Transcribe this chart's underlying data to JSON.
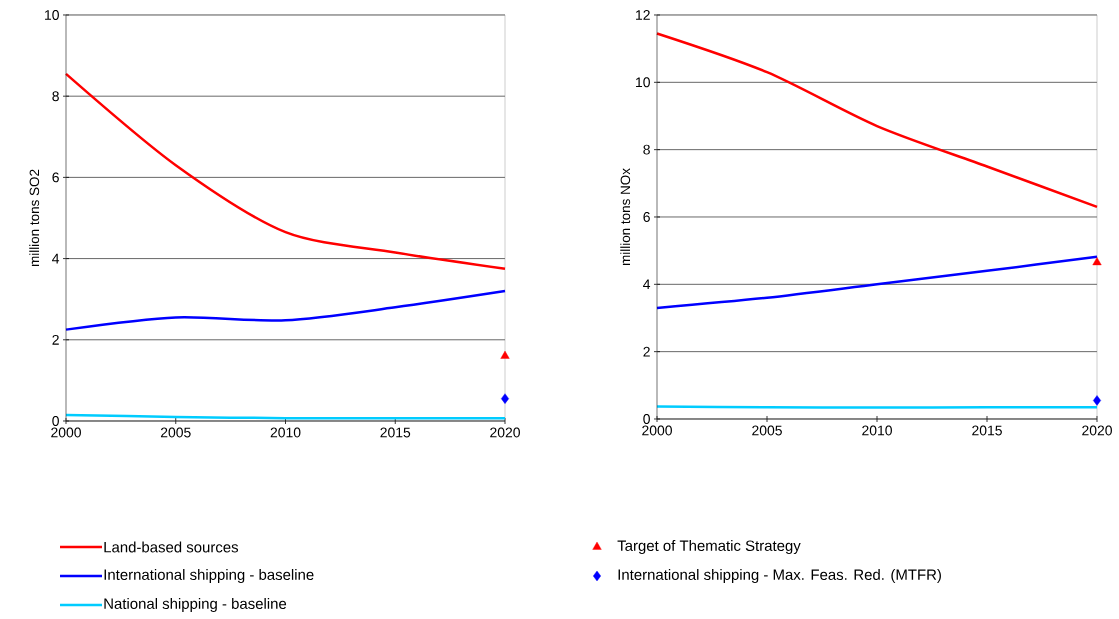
{
  "chart_data": [
    {
      "type": "line",
      "x": [
        2000,
        2005,
        2010,
        2015,
        2020
      ],
      "xlim": [
        2000,
        2020
      ],
      "xticks": [
        2000,
        2005,
        2010,
        2015,
        2020
      ],
      "ylim": [
        0,
        10
      ],
      "yticks": [
        0,
        2,
        4,
        6,
        8,
        10
      ],
      "ylabel": "million tons SO2",
      "grid": "y",
      "legend": "bottom",
      "marker": "none",
      "series": [
        {
          "name": "Land-based sources",
          "color": "#ff0000",
          "values": [
            8.55,
            6.3,
            4.65,
            4.15,
            3.75
          ]
        },
        {
          "name": "International shipping - baseline",
          "color": "#0000ff",
          "values": [
            2.25,
            2.55,
            2.48,
            2.8,
            3.2
          ]
        },
        {
          "name": "National shipping - baseline",
          "color": "#00ccff",
          "values": [
            0.15,
            0.1,
            0.07,
            0.07,
            0.07
          ]
        },
        {
          "name": "Target of Thematic Strategy",
          "type": "scatter",
          "marker": "triangle",
          "color": "#ff0000",
          "values": [
            null,
            null,
            null,
            null,
            1.6
          ]
        },
        {
          "name": "International shipping - Max. Feas. Red. (MTFR)",
          "type": "scatter",
          "marker": "diamond",
          "color": "#0000ff",
          "values": [
            null,
            null,
            null,
            null,
            0.55
          ]
        }
      ]
    },
    {
      "type": "line",
      "x": [
        2000,
        2005,
        2010,
        2015,
        2020
      ],
      "xlim": [
        2000,
        2020
      ],
      "xticks": [
        2000,
        2005,
        2010,
        2015,
        2020
      ],
      "ylim": [
        0,
        12
      ],
      "yticks": [
        0,
        2,
        4,
        6,
        8,
        10,
        12
      ],
      "ylabel": "million tons NOx",
      "grid": "y",
      "marker": "none",
      "series": [
        {
          "color": "#ff0000",
          "values": [
            11.45,
            10.3,
            8.7,
            7.5,
            6.3
          ]
        },
        {
          "color": "#0000ff",
          "values": [
            3.3,
            3.6,
            4.0,
            4.4,
            4.82
          ]
        },
        {
          "color": "#00ccff",
          "values": [
            0.37,
            0.35,
            0.34,
            0.35,
            0.35
          ]
        },
        {
          "type": "scatter",
          "marker": "triangle",
          "color": "#ff0000",
          "values": [
            null,
            null,
            null,
            null,
            4.65
          ]
        },
        {
          "type": "scatter",
          "marker": "diamond",
          "color": "#0000ff",
          "values": [
            null,
            null,
            null,
            null,
            0.55
          ]
        }
      ]
    }
  ]
}
